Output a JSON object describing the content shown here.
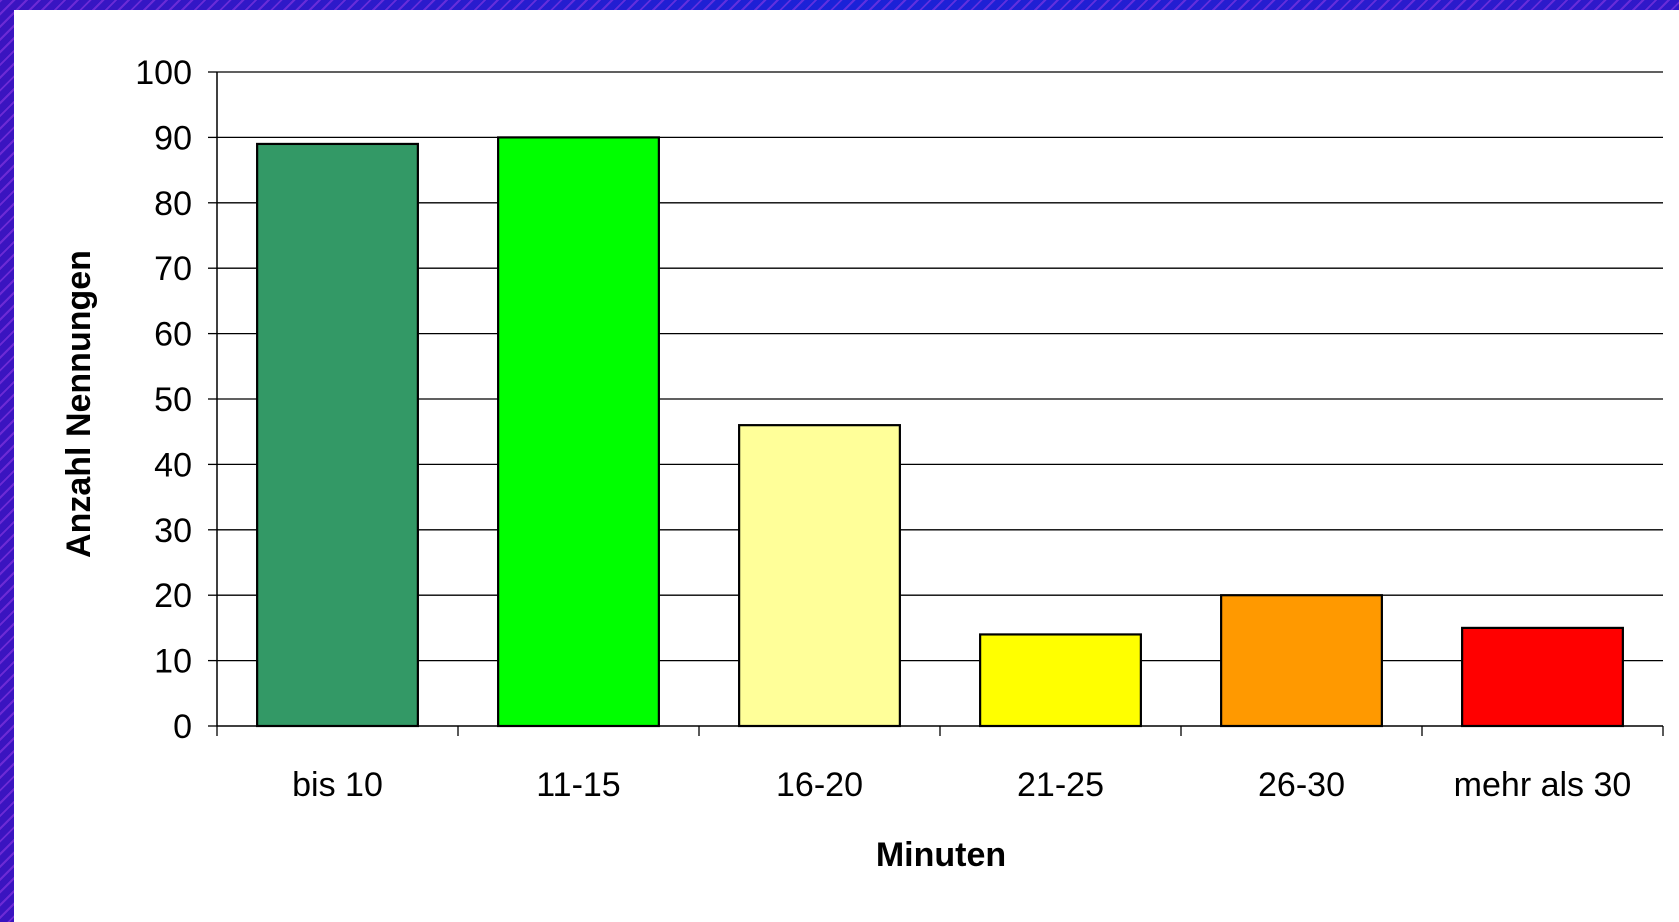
{
  "chart_data": {
    "type": "bar",
    "categories": [
      "bis 10",
      "11-15",
      "16-20",
      "21-25",
      "26-30",
      "mehr als 30"
    ],
    "values": [
      89,
      90,
      46,
      14,
      20,
      15
    ],
    "colors": [
      "#339966",
      "#00ff00",
      "#ffff99",
      "#ffff00",
      "#ff9900",
      "#ff0000"
    ],
    "xlabel": "Minuten",
    "ylabel": "Anzahl Nennungen",
    "ylim": [
      0,
      100
    ],
    "yticks": [
      "0",
      "10",
      "20",
      "30",
      "40",
      "50",
      "60",
      "70",
      "80",
      "90",
      "100"
    ],
    "grid": true
  }
}
